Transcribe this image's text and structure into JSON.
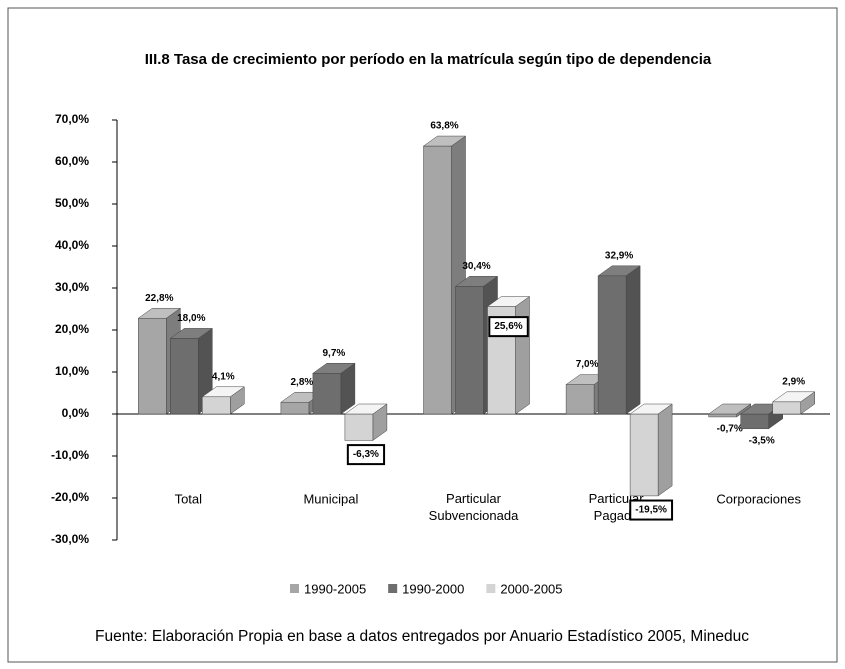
{
  "chart_data": {
    "type": "bar3d",
    "title": "III.8 Tasa de crecimiento por período en la matrícula según tipo de dependencia",
    "categories": [
      "Total",
      "Municipal",
      "Particular Subvencionada",
      "Particular Pagada",
      "Corporaciones"
    ],
    "series": [
      {
        "name": "1990-2005",
        "color": "#a6a6a6",
        "values": [
          22.8,
          2.8,
          63.8,
          7.0,
          -0.7
        ],
        "value_labels": [
          "22,8%",
          "2,8%",
          "63,8%",
          "7,0%",
          "-0,7%"
        ]
      },
      {
        "name": "1990-2000",
        "color": "#6e6e6e",
        "values": [
          18.0,
          9.7,
          30.4,
          32.9,
          -3.5
        ],
        "value_labels": [
          "18,0%",
          "9,7%",
          "30,4%",
          "32,9%",
          "-3,5%"
        ]
      },
      {
        "name": "2000-2005",
        "color": "#d4d4d4",
        "values": [
          4.1,
          -6.3,
          25.6,
          -19.5,
          2.9
        ],
        "value_labels": [
          "4,1%",
          "-6,3%",
          "25,6%",
          "-19,5%",
          "2,9%"
        ],
        "boxed": [
          false,
          true,
          true,
          true,
          false
        ]
      }
    ],
    "ylim": [
      -30,
      70
    ],
    "yticks": [
      {
        "value": -30,
        "label": "-30,0%"
      },
      {
        "value": -20,
        "label": "-20,0%"
      },
      {
        "value": -10,
        "label": "-10,0%"
      },
      {
        "value": 0,
        "label": "0,0%"
      },
      {
        "value": 10,
        "label": "10,0%"
      },
      {
        "value": 20,
        "label": "20,0%"
      },
      {
        "value": 30,
        "label": "30,0%"
      },
      {
        "value": 40,
        "label": "40,0%"
      },
      {
        "value": 50,
        "label": "50,0%"
      },
      {
        "value": 60,
        "label": "60,0%"
      },
      {
        "value": 70,
        "label": "70,0%"
      }
    ],
    "legend": "bottom",
    "source": "Fuente: Elaboración Propia en base a datos entregados por Anuario Estadístico 2005, Mineduc"
  }
}
